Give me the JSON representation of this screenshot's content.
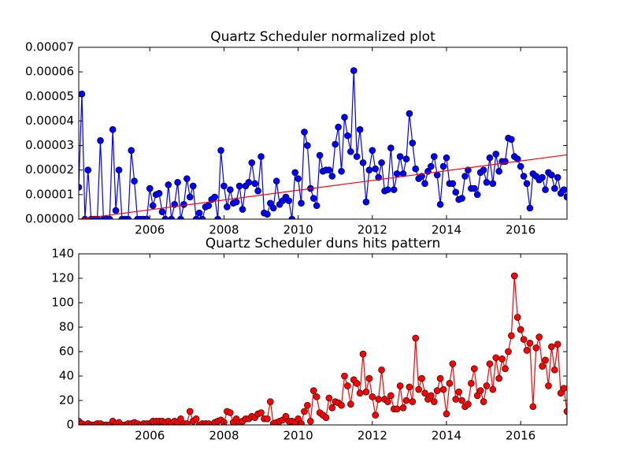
{
  "chart_data": [
    {
      "type": "line",
      "title": "Quartz Scheduler normalized plot",
      "xlim": [
        2004.083,
        2017.25
      ],
      "xticks": [
        2006,
        2008,
        2010,
        2012,
        2014,
        2016
      ],
      "ylim": [
        0,
        7e-05
      ],
      "yticks": [
        {
          "value": 0,
          "label": "0.00000"
        },
        1e-05,
        2e-05,
        3e-05,
        4e-05,
        5e-05,
        6e-05,
        7e-05
      ],
      "x": [
        2004.083,
        2004.167,
        2004.25,
        2004.333,
        2004.417,
        2004.5,
        2004.583,
        2004.667,
        2004.75,
        2004.833,
        2004.917,
        2005,
        2005.083,
        2005.167,
        2005.25,
        2005.333,
        2005.417,
        2005.5,
        2005.583,
        2005.667,
        2005.75,
        2005.833,
        2005.917,
        2006,
        2006.083,
        2006.167,
        2006.25,
        2006.333,
        2006.417,
        2006.5,
        2006.583,
        2006.667,
        2006.75,
        2006.833,
        2006.917,
        2007,
        2007.083,
        2007.167,
        2007.25,
        2007.333,
        2007.417,
        2007.5,
        2007.583,
        2007.667,
        2007.75,
        2007.833,
        2007.917,
        2008,
        2008.083,
        2008.167,
        2008.25,
        2008.333,
        2008.417,
        2008.5,
        2008.583,
        2008.667,
        2008.75,
        2008.833,
        2008.917,
        2009,
        2009.083,
        2009.167,
        2009.25,
        2009.333,
        2009.417,
        2009.5,
        2009.583,
        2009.667,
        2009.75,
        2009.833,
        2009.917,
        2010,
        2010.083,
        2010.167,
        2010.25,
        2010.333,
        2010.417,
        2010.5,
        2010.583,
        2010.667,
        2010.75,
        2010.833,
        2010.917,
        2011,
        2011.083,
        2011.167,
        2011.25,
        2011.333,
        2011.417,
        2011.5,
        2011.583,
        2011.667,
        2011.75,
        2011.833,
        2011.917,
        2012,
        2012.083,
        2012.167,
        2012.25,
        2012.333,
        2012.417,
        2012.5,
        2012.583,
        2012.667,
        2012.75,
        2012.833,
        2012.917,
        2013,
        2013.083,
        2013.167,
        2013.25,
        2013.333,
        2013.417,
        2013.5,
        2013.583,
        2013.667,
        2013.75,
        2013.833,
        2013.917,
        2014,
        2014.083,
        2014.167,
        2014.25,
        2014.333,
        2014.417,
        2014.5,
        2014.583,
        2014.667,
        2014.75,
        2014.833,
        2014.917,
        2015,
        2015.083,
        2015.167,
        2015.25,
        2015.333,
        2015.417,
        2015.5,
        2015.583,
        2015.667,
        2015.75,
        2015.833,
        2015.917,
        2016,
        2016.083,
        2016.167,
        2016.25,
        2016.333,
        2016.417,
        2016.5,
        2016.583,
        2016.667,
        2016.75,
        2016.833,
        2016.917,
        2017,
        2017.083,
        2017.167,
        2017.25
      ],
      "series": [
        {
          "color": "#0000ff",
          "values": [
            1.3e-05,
            5.1e-05,
            0,
            2e-05,
            0,
            0,
            0,
            3.2e-05,
            0,
            0,
            0,
            3.65e-05,
            3.5e-06,
            2e-05,
            0,
            0,
            0,
            2.8e-05,
            1.55e-05,
            0,
            0,
            0,
            0,
            1.25e-05,
            5.5e-06,
            1e-05,
            1.05e-05,
            3e-06,
            0,
            1.4e-05,
            0,
            6e-06,
            1.5e-05,
            0,
            6e-06,
            1.65e-05,
            9e-06,
            1.35e-05,
            0,
            2.5e-06,
            0,
            5e-06,
            5.5e-06,
            8e-06,
            9e-06,
            0,
            2.8e-05,
            1.35e-05,
            5e-06,
            1.2e-05,
            6.5e-06,
            7e-06,
            1.35e-05,
            4e-06,
            1.35e-05,
            1.5e-05,
            2.3e-05,
            1.45e-05,
            1.15e-05,
            2.55e-05,
            2.5e-06,
            2e-06,
            6.5e-06,
            4.5e-06,
            1.55e-05,
            6e-06,
            7.5e-06,
            9e-06,
            7.5e-06,
            0,
            1.9e-05,
            1.65e-05,
            6.5e-06,
            3.55e-05,
            3e-05,
            1.25e-05,
            8.5e-06,
            5.5e-06,
            2.6e-05,
            1.95e-05,
            2e-05,
            2e-05,
            1.75e-05,
            3.05e-05,
            3.75e-05,
            1.95e-05,
            4.15e-05,
            3.4e-05,
            2.75e-05,
            6.05e-05,
            2.55e-05,
            3.65e-05,
            2.3e-05,
            7e-06,
            2e-05,
            2.8e-05,
            2.05e-05,
            1.7e-05,
            2.3e-05,
            1.15e-05,
            1.2e-05,
            2.9e-05,
            1.2e-05,
            1.85e-05,
            2.55e-05,
            1.85e-05,
            2.45e-05,
            4.3e-05,
            3.1e-05,
            2.05e-05,
            1.65e-05,
            1.75e-05,
            1.45e-05,
            1.95e-05,
            2.15e-05,
            2.55e-05,
            1.8e-05,
            6e-06,
            2.15e-05,
            2.5e-05,
            1.45e-05,
            1.45e-05,
            1.1e-05,
            8e-06,
            8.5e-06,
            1.75e-05,
            2e-05,
            1.25e-05,
            1.25e-05,
            1e-05,
            1.9e-05,
            2e-05,
            1.5e-05,
            2.5e-05,
            1.45e-05,
            2.65e-05,
            1.95e-05,
            2.35e-05,
            2.35e-05,
            3.3e-05,
            3.25e-05,
            2.55e-05,
            2.45e-05,
            2.15e-05,
            1.75e-05,
            1.45e-05,
            4.5e-06,
            1.85e-05,
            1.75e-05,
            1.6e-05,
            1.7e-05,
            1.2e-05,
            1.9e-05,
            1.8e-05,
            1.25e-05,
            1.7e-05,
            1.05e-05,
            1.2e-05,
            9e-06
          ]
        }
      ],
      "trend_line": {
        "x": [
          2004.083,
          2017.25
        ],
        "values": [
          0,
          2.62e-05
        ],
        "color": "#ff0000"
      }
    },
    {
      "type": "line",
      "title": "Quartz Scheduler duns hits pattern",
      "xlim": [
        2004.083,
        2017.25
      ],
      "xticks": [
        2006,
        2008,
        2010,
        2012,
        2014,
        2016
      ],
      "ylim": [
        0,
        140
      ],
      "yticks": [
        0,
        20,
        40,
        60,
        80,
        100,
        120,
        140
      ],
      "x": [
        2004.083,
        2004.167,
        2004.25,
        2004.333,
        2004.417,
        2004.5,
        2004.583,
        2004.667,
        2004.75,
        2004.833,
        2004.917,
        2005,
        2005.083,
        2005.167,
        2005.25,
        2005.333,
        2005.417,
        2005.5,
        2005.583,
        2005.667,
        2005.75,
        2005.833,
        2005.917,
        2006,
        2006.083,
        2006.167,
        2006.25,
        2006.333,
        2006.417,
        2006.5,
        2006.583,
        2006.667,
        2006.75,
        2006.833,
        2006.917,
        2007,
        2007.083,
        2007.167,
        2007.25,
        2007.333,
        2007.417,
        2007.5,
        2007.583,
        2007.667,
        2007.75,
        2007.833,
        2007.917,
        2008,
        2008.083,
        2008.167,
        2008.25,
        2008.333,
        2008.417,
        2008.5,
        2008.583,
        2008.667,
        2008.75,
        2008.833,
        2008.917,
        2009,
        2009.083,
        2009.167,
        2009.25,
        2009.333,
        2009.417,
        2009.5,
        2009.583,
        2009.667,
        2009.75,
        2009.833,
        2009.917,
        2010,
        2010.083,
        2010.167,
        2010.25,
        2010.333,
        2010.417,
        2010.5,
        2010.583,
        2010.667,
        2010.75,
        2010.833,
        2010.917,
        2011,
        2011.083,
        2011.167,
        2011.25,
        2011.333,
        2011.417,
        2011.5,
        2011.583,
        2011.667,
        2011.75,
        2011.833,
        2011.917,
        2012,
        2012.083,
        2012.167,
        2012.25,
        2012.333,
        2012.417,
        2012.5,
        2012.583,
        2012.667,
        2012.75,
        2012.833,
        2012.917,
        2013,
        2013.083,
        2013.167,
        2013.25,
        2013.333,
        2013.417,
        2013.5,
        2013.583,
        2013.667,
        2013.75,
        2013.833,
        2013.917,
        2014,
        2014.083,
        2014.167,
        2014.25,
        2014.333,
        2014.417,
        2014.5,
        2014.583,
        2014.667,
        2014.75,
        2014.833,
        2014.917,
        2015,
        2015.083,
        2015.167,
        2015.25,
        2015.333,
        2015.417,
        2015.5,
        2015.583,
        2015.667,
        2015.75,
        2015.833,
        2015.917,
        2016,
        2016.083,
        2016.167,
        2016.25,
        2016.333,
        2016.417,
        2016.5,
        2016.583,
        2016.667,
        2016.75,
        2016.833,
        2016.917,
        2017,
        2017.083,
        2017.167,
        2017.25
      ],
      "series": [
        {
          "color": "#ff0000",
          "values": [
            3,
            1,
            0,
            1,
            0,
            0,
            1,
            1,
            0,
            0,
            0,
            3,
            1,
            2,
            0,
            0,
            1,
            1,
            2,
            1,
            0,
            1,
            1,
            1,
            3,
            3,
            3,
            3,
            2,
            3,
            1,
            3,
            2,
            5,
            1,
            1,
            11,
            3,
            5,
            0,
            1,
            1,
            1,
            0,
            2,
            3,
            4,
            2,
            11,
            10,
            2,
            5,
            2,
            3,
            5,
            5,
            7,
            6,
            9,
            10,
            5,
            5,
            19,
            1,
            2,
            3,
            4,
            7,
            3,
            3,
            2,
            5,
            1,
            11,
            16,
            3,
            28,
            23,
            10,
            8,
            6,
            22,
            14,
            19,
            18,
            16,
            40,
            32,
            17,
            37,
            34,
            26,
            58,
            27,
            38,
            23,
            8,
            21,
            45,
            21,
            19,
            24,
            13,
            13,
            32,
            14,
            20,
            31,
            19,
            71,
            29,
            38,
            26,
            21,
            24,
            19,
            28,
            38,
            29,
            9,
            34,
            50,
            21,
            27,
            20,
            15,
            17,
            34,
            46,
            24,
            28,
            19,
            32,
            50,
            29,
            55,
            38,
            54,
            46,
            60,
            73,
            122,
            88,
            78,
            70,
            61,
            67,
            15,
            63,
            72,
            48,
            53,
            32,
            64,
            45,
            66,
            26,
            30,
            11
          ]
        }
      ]
    }
  ]
}
